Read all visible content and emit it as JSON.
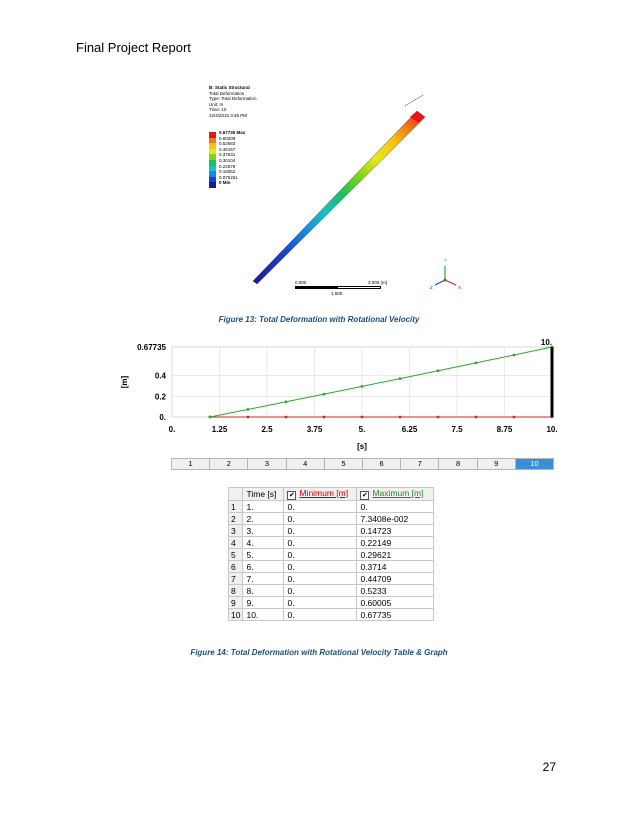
{
  "header": {
    "text": "Final Project Report"
  },
  "figure13": {
    "legend_lines": [
      "B: Static Structural",
      "Total Deformation",
      "Type: Total Deformation",
      "Unit: m",
      "Time: 10",
      "12/4/2015 3:48 PM"
    ],
    "max_label": "0.67735 Max",
    "levels": [
      "0.60209",
      "0.52683",
      "0.45157",
      "0.37631",
      "0.30104",
      "0.22578",
      "0.15052",
      "0.075261"
    ],
    "min_label": "0 Min",
    "level_colors": [
      "#e8141c",
      "#f07b17",
      "#f5c60f",
      "#e8e818",
      "#7fd41a",
      "#18c25a",
      "#16c4c4",
      "#1a86e0",
      "#1a3fd8",
      "#1a1a9e"
    ],
    "scale_left": "0.000",
    "scale_right": "3.000 (m)",
    "scale_mid": "1.500",
    "axis_y": "Y",
    "axis_z": "Z",
    "axis_x": "X",
    "caption": "Figure 13: Total Deformation with Rotational Velocity"
  },
  "chart_data": {
    "type": "line",
    "x": [
      1,
      2,
      3,
      4,
      5,
      6,
      7,
      8,
      9,
      10
    ],
    "xlabel": "[s]",
    "ylabel": "[m]",
    "x_ticks": [
      "0.",
      "1.25",
      "2.5",
      "3.75",
      "5.",
      "6.25",
      "7.5",
      "8.75",
      "10."
    ],
    "y_ticks": [
      "0.",
      "0.2",
      "0.4",
      "0.67735"
    ],
    "xlim": [
      0,
      10
    ],
    "ylim": [
      0,
      0.67735
    ],
    "current_time_label": "10.",
    "series": [
      {
        "name": "Minimum [m]",
        "color": "#d62020",
        "values": [
          0,
          0,
          0,
          0,
          0,
          0,
          0,
          0,
          0,
          0
        ]
      },
      {
        "name": "Maximum [m]",
        "color": "#2ea82e",
        "values": [
          0,
          0.073408,
          0.14723,
          0.22149,
          0.29621,
          0.3714,
          0.44709,
          0.5233,
          0.60005,
          0.67735
        ]
      }
    ]
  },
  "steps": {
    "labels": [
      "1",
      "2",
      "3",
      "4",
      "5",
      "6",
      "7",
      "8",
      "9",
      "10"
    ],
    "active": "10"
  },
  "table": {
    "headers": {
      "time": "Time [s]",
      "min": "Minimum [m]",
      "max": "Maximum [m]",
      "checkmark": "✔"
    },
    "rows": [
      {
        "idx": "1",
        "time": "1.",
        "min": "0.",
        "max": "0."
      },
      {
        "idx": "2",
        "time": "2.",
        "min": "0.",
        "max": "7.3408e-002"
      },
      {
        "idx": "3",
        "time": "3.",
        "min": "0.",
        "max": "0.14723"
      },
      {
        "idx": "4",
        "time": "4.",
        "min": "0.",
        "max": "0.22149"
      },
      {
        "idx": "5",
        "time": "5.",
        "min": "0.",
        "max": "0.29621"
      },
      {
        "idx": "6",
        "time": "6.",
        "min": "0.",
        "max": "0.3714"
      },
      {
        "idx": "7",
        "time": "7.",
        "min": "0.",
        "max": "0.44709"
      },
      {
        "idx": "8",
        "time": "8.",
        "min": "0.",
        "max": "0.5233"
      },
      {
        "idx": "9",
        "time": "9.",
        "min": "0.",
        "max": "0.60005"
      },
      {
        "idx": "10",
        "time": "10.",
        "min": "0.",
        "max": "0.67735"
      }
    ]
  },
  "figure14_caption": "Figure 14: Total Deformation with Rotational Velocity Table & Graph",
  "page_number": "27"
}
